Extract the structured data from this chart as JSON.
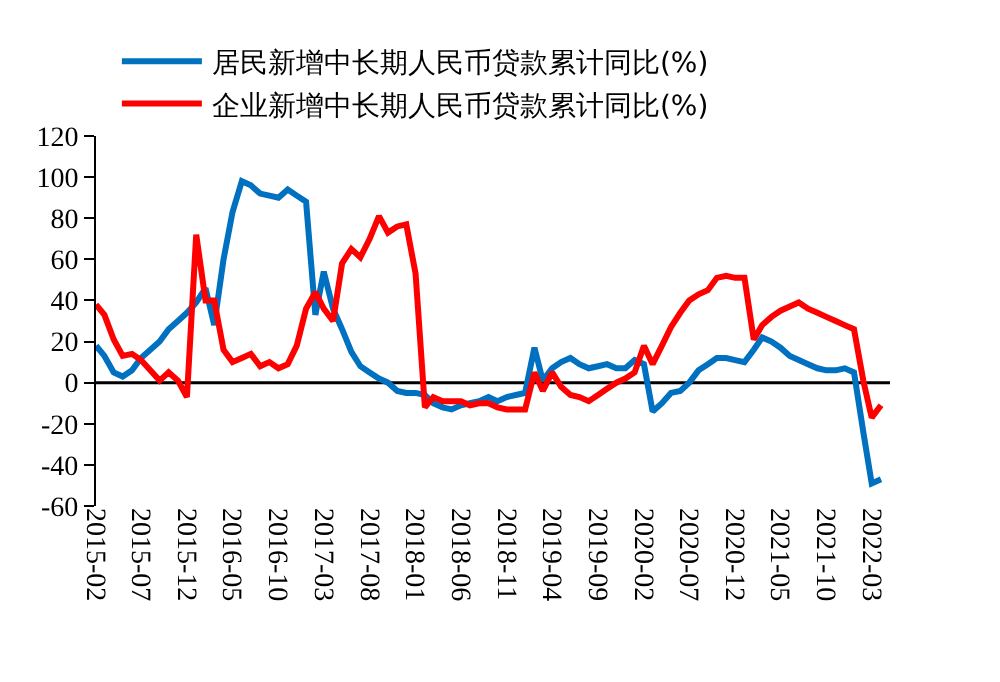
{
  "chart_data": {
    "type": "line",
    "x": [
      "2015-02",
      "2015-03",
      "2015-04",
      "2015-05",
      "2015-06",
      "2015-07",
      "2015-08",
      "2015-09",
      "2015-10",
      "2015-11",
      "2015-12",
      "2016-01",
      "2016-02",
      "2016-03",
      "2016-04",
      "2016-05",
      "2016-06",
      "2016-07",
      "2016-08",
      "2016-09",
      "2016-10",
      "2016-11",
      "2016-12",
      "2017-01",
      "2017-02",
      "2017-03",
      "2017-04",
      "2017-05",
      "2017-06",
      "2017-07",
      "2017-08",
      "2017-09",
      "2017-10",
      "2017-11",
      "2017-12",
      "2018-01",
      "2018-02",
      "2018-03",
      "2018-04",
      "2018-05",
      "2018-06",
      "2018-07",
      "2018-08",
      "2018-09",
      "2018-10",
      "2018-11",
      "2018-12",
      "2019-01",
      "2019-02",
      "2019-03",
      "2019-04",
      "2019-05",
      "2019-06",
      "2019-07",
      "2019-08",
      "2019-09",
      "2019-10",
      "2019-11",
      "2019-12",
      "2020-01",
      "2020-02",
      "2020-03",
      "2020-04",
      "2020-05",
      "2020-06",
      "2020-07",
      "2020-08",
      "2020-09",
      "2020-10",
      "2020-11",
      "2020-12",
      "2021-01",
      "2021-02",
      "2021-03",
      "2021-04",
      "2021-05",
      "2021-06",
      "2021-07",
      "2021-08",
      "2021-09",
      "2021-10",
      "2021-11",
      "2021-12",
      "2022-01",
      "2022-02",
      "2022-03",
      "2022-04"
    ],
    "series": [
      {
        "name": "居民新增中长期人民币贷款累计同比(%)",
        "color": "#0070c0",
        "values": [
          18,
          13,
          5,
          3,
          6,
          12,
          16,
          20,
          26,
          30,
          34,
          39,
          46,
          28,
          60,
          83,
          98,
          96,
          92,
          91,
          90,
          94,
          91,
          88,
          33,
          54,
          36,
          26,
          15,
          8,
          5,
          2,
          0,
          -4,
          -5,
          -5,
          -6,
          -10,
          -12,
          -13,
          -11,
          -10,
          -9,
          -7,
          -9,
          -7,
          -6,
          -5,
          17,
          1,
          7,
          10,
          12,
          9,
          7,
          8,
          9,
          7,
          7,
          11,
          9,
          -14,
          -10,
          -5,
          -4,
          0,
          6,
          9,
          12,
          12,
          11,
          10,
          16,
          22,
          20,
          17,
          13,
          11,
          9,
          7,
          6,
          6,
          7,
          5,
          -24,
          -49,
          -47
        ]
      },
      {
        "name": "企业新增中长期人民币贷款累计同比(%)",
        "color": "#ff0000",
        "values": [
          38,
          33,
          21,
          13,
          14,
          11,
          6,
          1,
          5,
          1,
          -7,
          72,
          40,
          40,
          16,
          10,
          12,
          14,
          8,
          10,
          7,
          9,
          18,
          36,
          44,
          36,
          30,
          58,
          65,
          61,
          70,
          81,
          73,
          76,
          77,
          53,
          -12,
          -7,
          -9,
          -9,
          -9,
          -11,
          -10,
          -10,
          -12,
          -13,
          -13,
          -13,
          5,
          -4,
          5,
          -2,
          -6,
          -7,
          -9,
          -6,
          -3,
          0,
          2,
          5,
          18,
          9,
          18,
          27,
          34,
          40,
          43,
          45,
          51,
          52,
          51,
          51,
          21,
          28,
          32,
          35,
          37,
          39,
          36,
          34,
          32,
          30,
          28,
          26,
          1,
          -17,
          -11
        ]
      }
    ],
    "xlim": [
      "2015-02",
      "2022-05"
    ],
    "xticks": [
      {
        "value": "2015-02",
        "label": "2015-02"
      },
      {
        "value": "2015-07",
        "label": "2015-07"
      },
      {
        "value": "2015-12",
        "label": "2015-12"
      },
      {
        "value": "2016-05",
        "label": "2016-05"
      },
      {
        "value": "2016-10",
        "label": "2016-10"
      },
      {
        "value": "2017-03",
        "label": "2017-03"
      },
      {
        "value": "2017-08",
        "label": "2017-08"
      },
      {
        "value": "2018-01",
        "label": "2018-01"
      },
      {
        "value": "2018-06",
        "label": "2018-06"
      },
      {
        "value": "2018-11",
        "label": "2018-11"
      },
      {
        "value": "2019-04",
        "label": "2019-04"
      },
      {
        "value": "2019-09",
        "label": "2019-09"
      },
      {
        "value": "2020-02",
        "label": "2020-02"
      },
      {
        "value": "2020-07",
        "label": "2020-07"
      },
      {
        "value": "2020-12",
        "label": "2020-12"
      },
      {
        "value": "2021-05",
        "label": "2021-05"
      },
      {
        "value": "2021-10",
        "label": "2021-10"
      },
      {
        "value": "2022-03",
        "label": "2022-03"
      }
    ],
    "ylim": [
      -60,
      120
    ],
    "yticks": [
      -60,
      -40,
      -20,
      0,
      20,
      40,
      60,
      80,
      100,
      120
    ],
    "ref_lines": [
      {
        "axis": "y",
        "value": 0,
        "color": "#000000",
        "line_style": "solid"
      }
    ],
    "legend": "top",
    "grid": false,
    "marker": "none",
    "line_style": "solid"
  }
}
